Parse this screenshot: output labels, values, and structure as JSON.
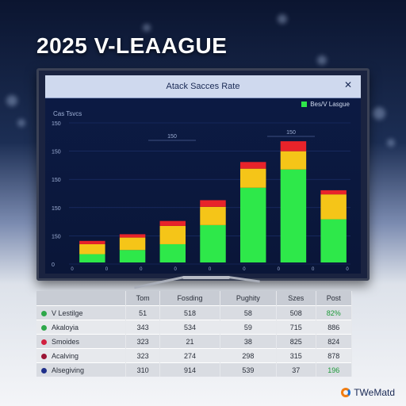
{
  "headline": "2025 V-LEAAGUE",
  "screen": {
    "title": "Atack Sacces Rate",
    "close_label": "✕",
    "legend_label": "Bes/V Lasgue",
    "y_title": "Cas Tsvcs",
    "colors": {
      "green": "#2ee84a",
      "yellow": "#f5c518",
      "red": "#e8232a",
      "background": "#0c1b45"
    }
  },
  "chart_data": {
    "type": "bar",
    "stacked": true,
    "title": "Atack Sacces Rate",
    "ylabel": "Cas Tsvcs",
    "y_ticks": [
      "150",
      "150",
      "150",
      "150",
      "150",
      "0"
    ],
    "x_ticks": [
      "0",
      "0",
      "0",
      "0",
      "0",
      "0",
      "0",
      "0",
      "0"
    ],
    "categories": [
      "1",
      "2",
      "3",
      "4",
      "5",
      "6",
      "7"
    ],
    "ylim": [
      0,
      170
    ],
    "annotations": [
      "150",
      "150"
    ],
    "series": [
      {
        "color": "#2ee84a",
        "values": [
          10,
          15,
          22,
          45,
          90,
          112,
          52
        ]
      },
      {
        "color": "#f5c518",
        "values": [
          12,
          15,
          22,
          22,
          23,
          22,
          30
        ]
      },
      {
        "color": "#e8232a",
        "values": [
          4,
          4,
          6,
          8,
          8,
          12,
          5
        ]
      }
    ]
  },
  "table": {
    "headers": [
      "",
      "Tom",
      "Fosding",
      "Pughity",
      "Szes",
      "Post"
    ],
    "rows": [
      {
        "dot_color": "#2ea84a",
        "cells": [
          "V Lestilge",
          "51",
          "518",
          "58",
          "508",
          "82%"
        ]
      },
      {
        "dot_color": "#2ea84a",
        "cells": [
          "Akaloyia",
          "343",
          "534",
          "59",
          "715",
          "886"
        ]
      },
      {
        "dot_color": "#d11f3f",
        "cells": [
          "Smoides",
          "323",
          "21",
          "38",
          "825",
          "824"
        ]
      },
      {
        "dot_color": "#9b1535",
        "cells": [
          "Acalving",
          "323",
          "274",
          "298",
          "315",
          "878"
        ]
      },
      {
        "dot_color": "#1f2f8a",
        "cells": [
          "Alsegiving",
          "310",
          "914",
          "539",
          "37",
          "196"
        ]
      }
    ]
  },
  "footer": {
    "logo_text": "TWeMatd"
  }
}
